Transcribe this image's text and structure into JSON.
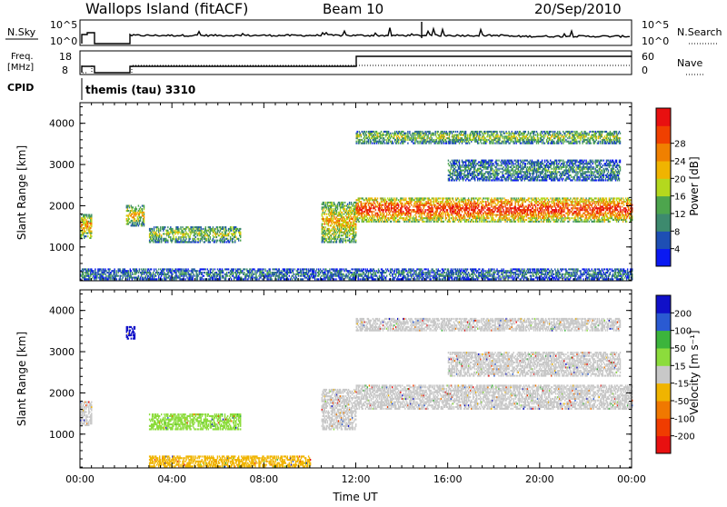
{
  "header": {
    "title": "Wallops Island (fitACF)",
    "beam": "Beam 10",
    "date": "20/Sep/2010"
  },
  "noise_panel": {
    "left_label": "N.Sky",
    "left_ticks": [
      "10^5",
      "10^0"
    ],
    "right_ticks": [
      "10^5",
      "10^0"
    ],
    "right_label": "N.Search"
  },
  "freq_panel": {
    "left_label_1": "Freq.",
    "left_label_2": "[MHz]",
    "left_ticks": [
      "18",
      "8"
    ],
    "right_ticks": [
      "60",
      "0"
    ],
    "right_label": "Nave"
  },
  "cpid": {
    "label": "CPID",
    "value": "themis (tau) 3310"
  },
  "colors": {
    "white": "#ffffff",
    "gray": "#c8c8c8",
    "grid": "#000000"
  },
  "chart_data": [
    {
      "type": "heatmap",
      "name": "power",
      "ylabel": "Slant Range [km]",
      "xlabel": "",
      "ylim": [
        180,
        4500
      ],
      "xlim": [
        0,
        24
      ],
      "y_ticks": [
        "1000",
        "2000",
        "3000",
        "4000"
      ],
      "colorbar": {
        "label": "Power [dB]",
        "ticks": [
          "4",
          "8",
          "12",
          "16",
          "20",
          "24",
          "28"
        ],
        "colors": [
          "#0a19f2",
          "#1e4fb4",
          "#3d8a6e",
          "#4da54d",
          "#b4d81e",
          "#f0b400",
          "#f08000",
          "#f04000",
          "#e81010"
        ]
      },
      "bands": [
        {
          "t": [
            0.0,
            0.5
          ],
          "r": [
            1200,
            1800
          ],
          "level": 0.65
        },
        {
          "t": [
            2.0,
            2.8
          ],
          "r": [
            1500,
            2000
          ],
          "level": 0.55
        },
        {
          "t": [
            3.0,
            7.0
          ],
          "r": [
            1100,
            1500
          ],
          "level": 0.45
        },
        {
          "t": [
            10.5,
            12.0
          ],
          "r": [
            1100,
            2100
          ],
          "level": 0.6
        },
        {
          "t": [
            12.0,
            24.0
          ],
          "r": [
            1600,
            2200
          ],
          "level": 0.85
        },
        {
          "t": [
            12.0,
            23.5
          ],
          "r": [
            3500,
            3800
          ],
          "level": 0.45
        },
        {
          "t": [
            16.0,
            23.5
          ],
          "r": [
            2600,
            3100
          ],
          "level": 0.3
        },
        {
          "t": [
            0.0,
            24.0
          ],
          "r": [
            200,
            450
          ],
          "level": 0.25
        }
      ]
    },
    {
      "type": "heatmap",
      "name": "velocity",
      "ylabel": "Slant Range [km]",
      "xlabel": "Time UT",
      "ylim": [
        180,
        4500
      ],
      "xlim": [
        0,
        24
      ],
      "x_ticks": [
        "00:00",
        "04:00",
        "08:00",
        "12:00",
        "16:00",
        "20:00",
        "00:00"
      ],
      "y_ticks": [
        "1000",
        "2000",
        "3000",
        "4000"
      ],
      "colorbar": {
        "label": "Velocity [m s⁻¹]",
        "ticks": [
          "200",
          "100",
          "50",
          "15",
          "-15",
          "-50",
          "-100",
          "-200"
        ],
        "colors": [
          "#1010c8",
          "#2a5ad2",
          "#3cb43c",
          "#8cdc3c",
          "#c8c8c8",
          "#f0b400",
          "#f07800",
          "#f03c00",
          "#e81010"
        ]
      },
      "bands": [
        {
          "t": [
            0.0,
            0.5
          ],
          "r": [
            1200,
            1800
          ],
          "class": "gray"
        },
        {
          "t": [
            2.0,
            2.4
          ],
          "r": [
            3300,
            3600
          ],
          "class": "blue"
        },
        {
          "t": [
            3.0,
            7.0
          ],
          "r": [
            1100,
            1500
          ],
          "class": "green"
        },
        {
          "t": [
            10.5,
            12.0
          ],
          "r": [
            1100,
            2100
          ],
          "class": "gray"
        },
        {
          "t": [
            12.0,
            24.0
          ],
          "r": [
            1600,
            2200
          ],
          "class": "gray"
        },
        {
          "t": [
            12.0,
            23.5
          ],
          "r": [
            3500,
            3800
          ],
          "class": "gray"
        },
        {
          "t": [
            16.0,
            23.5
          ],
          "r": [
            2400,
            3000
          ],
          "class": "gray"
        },
        {
          "t": [
            3.0,
            10.0
          ],
          "r": [
            200,
            450
          ],
          "class": "orange"
        }
      ]
    }
  ]
}
